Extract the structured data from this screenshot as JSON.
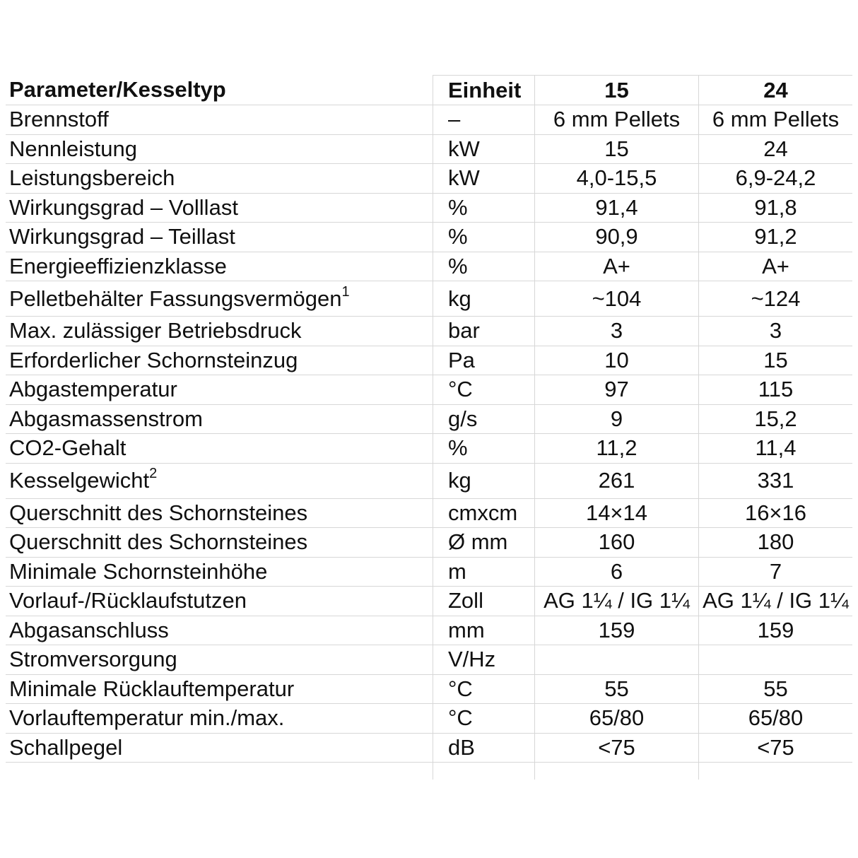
{
  "colors": {
    "grid": "#d7d7d7",
    "text": "#101010",
    "background": "#ffffff"
  },
  "table": {
    "columns": [
      {
        "key": "parameter",
        "label": "Parameter/Kesseltyp"
      },
      {
        "key": "unit",
        "label": "Einheit"
      },
      {
        "key": "v15",
        "label": "15"
      },
      {
        "key": "v24",
        "label": "24"
      }
    ],
    "rows": [
      {
        "parameter": "Brennstoff",
        "unit": "–",
        "v15": "6 mm Pellets",
        "v24": "6 mm Pellets"
      },
      {
        "parameter": "Nennleistung",
        "unit": "kW",
        "v15": "15",
        "v24": "24"
      },
      {
        "parameter": "Leistungsbereich",
        "unit": "kW",
        "v15": "4,0-15,5",
        "v24": "6,9-24,2"
      },
      {
        "parameter": "Wirkungsgrad – Volllast",
        "unit": "%",
        "v15": "91,4",
        "v24": "91,8"
      },
      {
        "parameter": "Wirkungsgrad – Teillast",
        "unit": "%",
        "v15": "90,9",
        "v24": "91,2"
      },
      {
        "parameter": "Energieeffizienzklasse",
        "unit": "%",
        "v15": "A+",
        "v24": "A+"
      },
      {
        "parameter": "Pelletbehälter Fassungsvermögen",
        "sup": "1",
        "tall": true,
        "unit": "kg",
        "v15": "~104",
        "v24": "~124"
      },
      {
        "parameter": "Max. zulässiger Betriebsdruck",
        "unit": "bar",
        "v15": "3",
        "v24": "3"
      },
      {
        "parameter": "Erforderlicher Schornsteinzug",
        "unit": "Pa",
        "v15": "10",
        "v24": "15"
      },
      {
        "parameter": "Abgastemperatur",
        "unit": "°C",
        "v15": "97",
        "v24": "115"
      },
      {
        "parameter": "Abgasmassenstrom",
        "unit": "g/s",
        "v15": "9",
        "v24": "15,2"
      },
      {
        "parameter": "CO2-Gehalt",
        "unit": "%",
        "v15": "11,2",
        "v24": "11,4"
      },
      {
        "parameter": "Kesselgewicht",
        "sup": "2",
        "tall": true,
        "unit": "kg",
        "v15": "261",
        "v24": "331"
      },
      {
        "parameter": "Querschnitt des Schornsteines",
        "unit": "cmxcm",
        "v15": "14×14",
        "v24": "16×16"
      },
      {
        "parameter": "Querschnitt des Schornsteines",
        "unit": "Ø mm",
        "v15": "160",
        "v24": "180"
      },
      {
        "parameter": "Minimale Schornsteinhöhe",
        "unit": "m",
        "v15": "6",
        "v24": "7"
      },
      {
        "parameter": "Vorlauf-/Rücklaufstutzen",
        "unit": "Zoll",
        "v15": "AG 1¼ / IG 1¼",
        "v24": "AG 1¼ / IG 1¼"
      },
      {
        "parameter": "Abgasanschluss",
        "unit": "mm",
        "v15": "159",
        "v24": "159"
      },
      {
        "parameter": "Stromversorgung",
        "unit": "V/Hz",
        "v15": "",
        "v24": ""
      },
      {
        "parameter": "Minimale Rücklauftemperatur",
        "unit": "°C",
        "v15": "55",
        "v24": "55"
      },
      {
        "parameter": "Vorlauftemperatur min./max.",
        "unit": "°C",
        "v15": "65/80",
        "v24": "65/80"
      },
      {
        "parameter": "Schallpegel",
        "unit": "dB",
        "v15": "<75",
        "v24": "<75"
      }
    ]
  }
}
